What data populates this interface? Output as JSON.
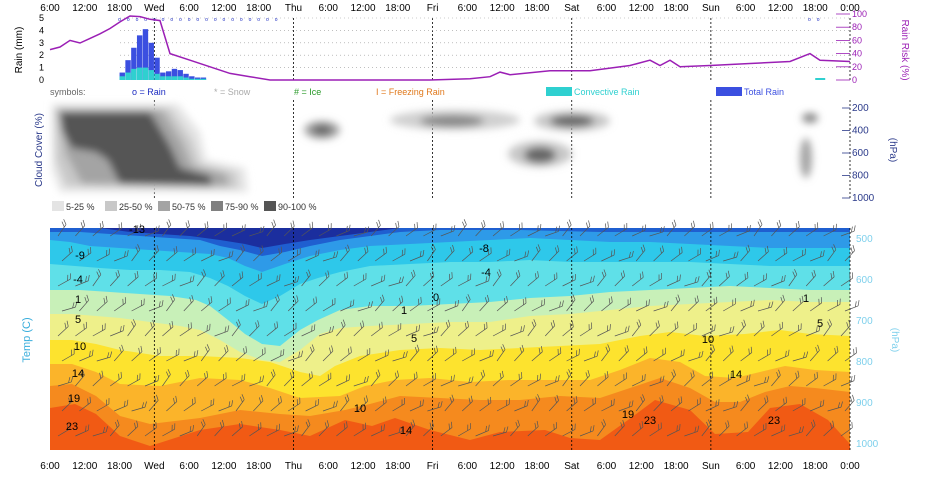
{
  "chart_data": [
    {
      "type": "bar",
      "ylabel": "Rain (mm)",
      "y2label": "Rain Risk (%)",
      "ylim": [
        0,
        5
      ],
      "y2lim": [
        0,
        100
      ],
      "y_ticks": [
        "0",
        "1",
        "2",
        "3",
        "4",
        "5"
      ],
      "y2_ticks": [
        "0",
        "20",
        "40",
        "60",
        "80",
        "100"
      ],
      "rain_mm_by_hour": [
        {
          "hour": 18,
          "total": 0.6,
          "convective": 0.3
        },
        {
          "hour": 19,
          "total": 1.6,
          "convective": 0.6
        },
        {
          "hour": 20,
          "total": 2.6,
          "convective": 0.9
        },
        {
          "hour": 21,
          "total": 3.6,
          "convective": 1.0
        },
        {
          "hour": 22,
          "total": 4.1,
          "convective": 1.0
        },
        {
          "hour": 23,
          "total": 3.0,
          "convective": 0.8
        },
        {
          "hour": 24,
          "total": 1.8,
          "convective": 0.5
        },
        {
          "hour": 25,
          "total": 0.6,
          "convective": 0.3
        },
        {
          "hour": 26,
          "total": 0.7,
          "convective": 0.3
        },
        {
          "hour": 27,
          "total": 0.9,
          "convective": 0.3
        },
        {
          "hour": 28,
          "total": 0.8,
          "convective": 0.3
        },
        {
          "hour": 29,
          "total": 0.5,
          "convective": 0.2
        },
        {
          "hour": 30,
          "total": 0.3,
          "convective": 0.1
        },
        {
          "hour": 31,
          "total": 0.2,
          "convective": 0.1
        },
        {
          "hour": 32,
          "total": 0.2,
          "convective": 0.1
        }
      ],
      "rain_risk_pct": [
        [
          0,
          46
        ],
        [
          3,
          50
        ],
        [
          6,
          60
        ],
        [
          9,
          56
        ],
        [
          12,
          63
        ],
        [
          15,
          70
        ],
        [
          18,
          78
        ],
        [
          21,
          88
        ],
        [
          24,
          97
        ],
        [
          27,
          96
        ],
        [
          30,
          92
        ],
        [
          33,
          90
        ],
        [
          36,
          40
        ],
        [
          42,
          30
        ],
        [
          48,
          20
        ],
        [
          54,
          10
        ],
        [
          60,
          5
        ],
        [
          66,
          0
        ],
        [
          78,
          0
        ],
        [
          90,
          0
        ],
        [
          102,
          0
        ],
        [
          114,
          0
        ],
        [
          126,
          2
        ],
        [
          132,
          5
        ],
        [
          135,
          12
        ],
        [
          138,
          8
        ],
        [
          150,
          14
        ],
        [
          162,
          14
        ],
        [
          174,
          22
        ],
        [
          180,
          30
        ],
        [
          183,
          22
        ],
        [
          186,
          30
        ],
        [
          189,
          20
        ],
        [
          198,
          22
        ],
        [
          210,
          25
        ],
        [
          222,
          28
        ],
        [
          228,
          40
        ],
        [
          231,
          30
        ],
        [
          240,
          28
        ]
      ]
    },
    {
      "type": "heatmap",
      "ylabel": "Cloud Cover (%)",
      "y2label": "(hPa)",
      "y2_ticks": [
        "200",
        "400",
        "600",
        "800",
        "1000"
      ],
      "legend": [
        "5-25 %",
        "25-50 %",
        "50-75 %",
        "75-90 %",
        "90-100 %"
      ]
    },
    {
      "type": "heatmap",
      "ylabel": "Temp (C)",
      "y2label": "(hPa)",
      "y2_ticks": [
        "500",
        "600",
        "700",
        "800",
        "900",
        "1000"
      ],
      "contour_labels": [
        "-13",
        "-9",
        "-4",
        "1",
        "5",
        "10",
        "14",
        "19",
        "23",
        "-8",
        "-4",
        "0",
        "1",
        "5",
        "10",
        "14",
        "19",
        "23",
        "23",
        "14",
        "10",
        "1",
        "5"
      ]
    }
  ],
  "time_axis": {
    "labels": [
      "6:00",
      "12:00",
      "18:00",
      "Wed",
      "6:00",
      "12:00",
      "18:00",
      "Thu",
      "6:00",
      "12:00",
      "18:00",
      "Fri",
      "6:00",
      "12:00",
      "18:00",
      "Sat",
      "6:00",
      "12:00",
      "18:00",
      "Sun",
      "6:00",
      "12:00",
      "18:00",
      "0:00"
    ],
    "day_markers": [
      "Wed",
      "Thu",
      "Fri",
      "Sat",
      "Sun"
    ]
  },
  "symbols_legend": {
    "title": "symbols:",
    "rain": "o = Rain",
    "snow": "* = Snow",
    "ice": "# = Ice",
    "freezing": "I = Freezing Rain",
    "convective": "Convective Rain",
    "total": "Total Rain"
  },
  "colors": {
    "rain_total": "#3b4fe0",
    "rain_convective": "#2fd0d0",
    "risk_line": "#9b1fb5",
    "snow": "#aaaaaa",
    "ice": "#2a9a2a",
    "freezing": "#e07a1e",
    "y2_axis": "#2b3a8a",
    "temp_axis": "#3aaedc",
    "cloud": [
      "#e4e4e4",
      "#c8c8c8",
      "#a4a4a4",
      "#808080",
      "#555555"
    ]
  }
}
